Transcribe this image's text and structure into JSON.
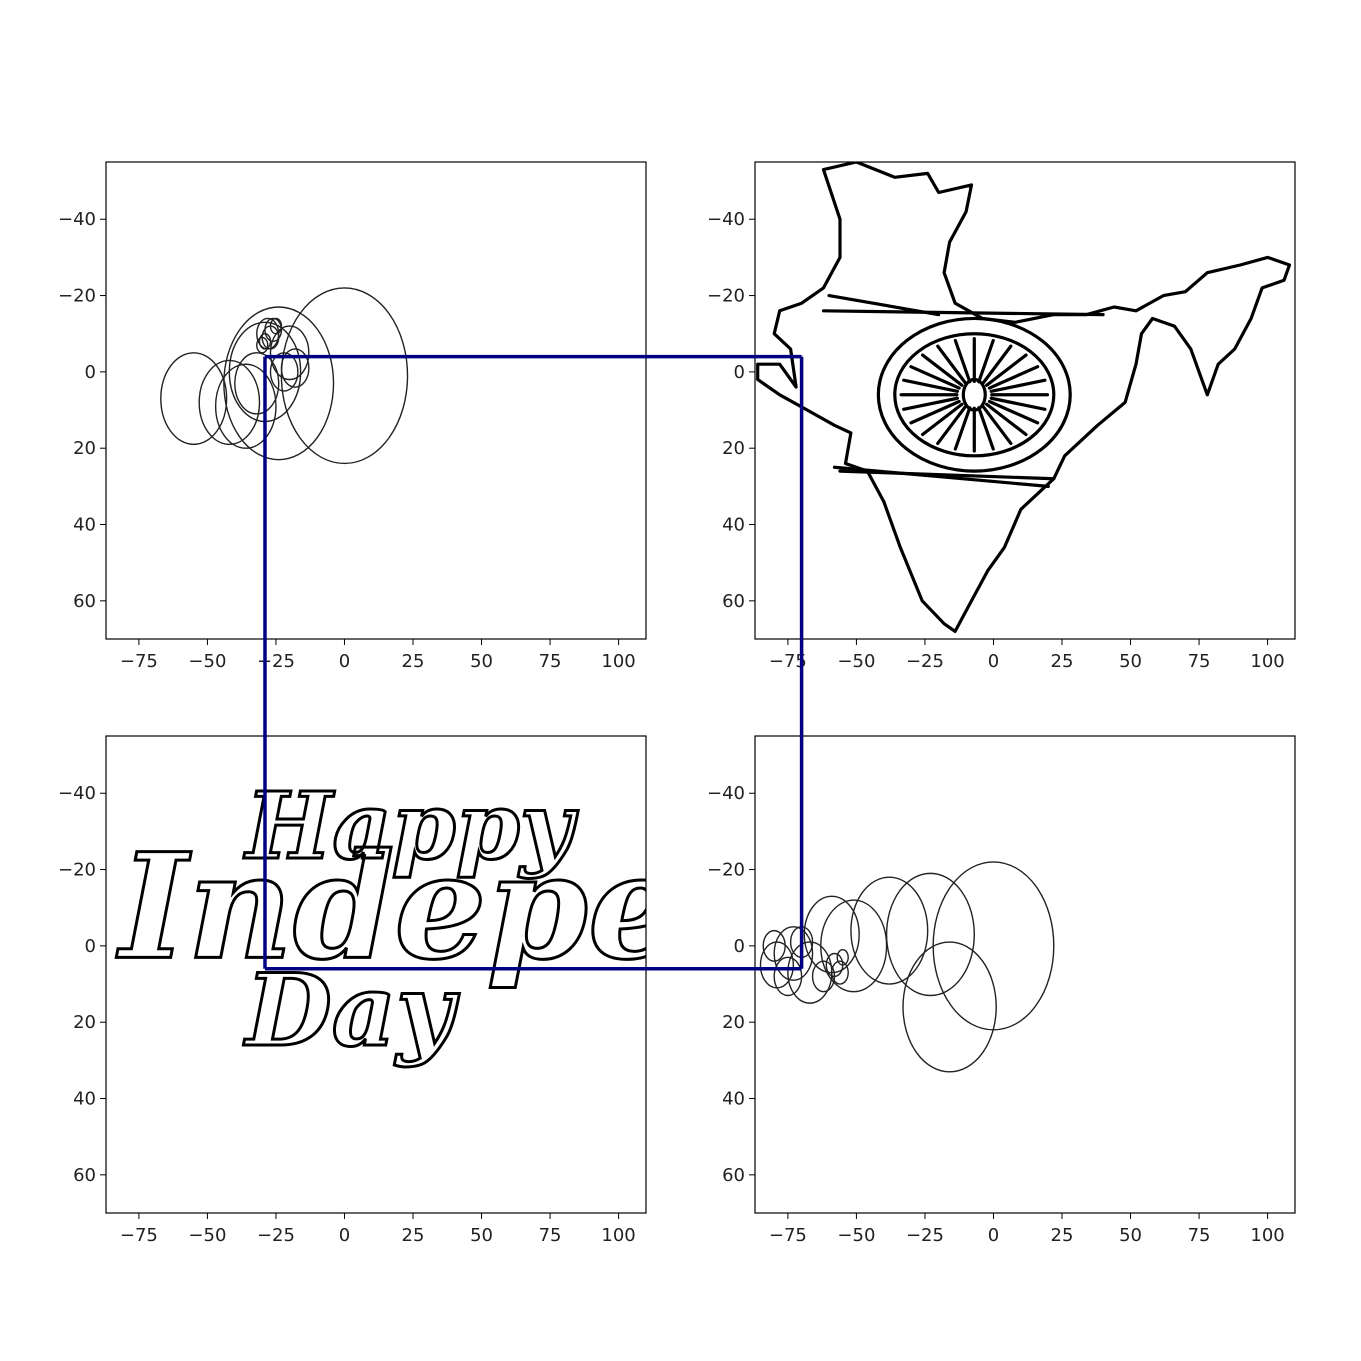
{
  "chart_data": [
    {
      "type": "scatter",
      "panel": "top-left",
      "content": "epicycle-circles",
      "xlim": [
        -87,
        110
      ],
      "ylim": [
        -55,
        70
      ],
      "y_inverted": true,
      "x_ticks": [
        -75,
        -50,
        -25,
        0,
        25,
        50,
        75,
        100
      ],
      "x_tick_labels": [
        "−75",
        "−50",
        "−25",
        "0",
        "25",
        "50",
        "75",
        "100"
      ],
      "y_ticks": [
        -40,
        -20,
        0,
        20,
        40,
        60
      ],
      "y_tick_labels": [
        "−40",
        "−20",
        "0",
        "20",
        "40",
        "60"
      ],
      "circles": [
        {
          "x": 0,
          "y": 1,
          "r": 23
        },
        {
          "x": -24,
          "y": 3,
          "r": 20
        },
        {
          "x": -29,
          "y": 0,
          "r": 13
        },
        {
          "x": -55,
          "y": 7,
          "r": 12
        },
        {
          "x": -42,
          "y": 8,
          "r": 11
        },
        {
          "x": -36,
          "y": 9,
          "r": 11
        },
        {
          "x": -32,
          "y": 3,
          "r": 8
        },
        {
          "x": -20,
          "y": -5,
          "r": 7
        },
        {
          "x": -22,
          "y": 0,
          "r": 5
        },
        {
          "x": -18,
          "y": -1,
          "r": 5
        },
        {
          "x": -28,
          "y": -10,
          "r": 4
        },
        {
          "x": -26,
          "y": -11,
          "r": 3
        },
        {
          "x": -27,
          "y": -9,
          "r": 3
        },
        {
          "x": -29,
          "y": -8,
          "r": 2
        },
        {
          "x": -25,
          "y": -12,
          "r": 2
        },
        {
          "x": -30,
          "y": -7,
          "r": 2
        }
      ],
      "pointer": {
        "x": -29,
        "y": -4
      }
    },
    {
      "type": "line",
      "panel": "top-right",
      "content": "india-map-with-ashoka-chakra",
      "xlim": [
        -87,
        110
      ],
      "ylim": [
        -55,
        70
      ],
      "y_inverted": true,
      "x_ticks": [
        -75,
        -50,
        -25,
        0,
        25,
        50,
        75,
        100
      ],
      "x_tick_labels": [
        "−75",
        "−50",
        "−25",
        "0",
        "25",
        "50",
        "75",
        "100"
      ],
      "y_ticks": [
        -40,
        -20,
        0,
        20,
        40,
        60
      ],
      "y_tick_labels": [
        "−40",
        "−20",
        "0",
        "20",
        "40",
        "60"
      ],
      "map_outline": [
        [
          -62,
          -53
        ],
        [
          -50,
          -55
        ],
        [
          -36,
          -51
        ],
        [
          -24,
          -52
        ],
        [
          -20,
          -47
        ],
        [
          -8,
          -49
        ],
        [
          -10,
          -42
        ],
        [
          -16,
          -34
        ],
        [
          -18,
          -26
        ],
        [
          -14,
          -18
        ],
        [
          -4,
          -14
        ],
        [
          8,
          -13
        ],
        [
          22,
          -15
        ],
        [
          34,
          -15
        ],
        [
          44,
          -17
        ],
        [
          52,
          -16
        ],
        [
          62,
          -20
        ],
        [
          70,
          -21
        ],
        [
          78,
          -26
        ],
        [
          90,
          -28
        ],
        [
          100,
          -30
        ],
        [
          108,
          -28
        ],
        [
          106,
          -24
        ],
        [
          98,
          -22
        ],
        [
          94,
          -14
        ],
        [
          88,
          -6
        ],
        [
          82,
          -2
        ],
        [
          78,
          6
        ],
        [
          72,
          -6
        ],
        [
          66,
          -12
        ],
        [
          58,
          -14
        ],
        [
          54,
          -10
        ],
        [
          52,
          -2
        ],
        [
          48,
          8
        ],
        [
          38,
          14
        ],
        [
          26,
          22
        ],
        [
          22,
          28
        ],
        [
          10,
          36
        ],
        [
          4,
          46
        ],
        [
          -2,
          52
        ],
        [
          -8,
          60
        ],
        [
          -14,
          68
        ],
        [
          -18,
          66
        ],
        [
          -26,
          60
        ],
        [
          -34,
          46
        ],
        [
          -40,
          34
        ],
        [
          -46,
          26
        ],
        [
          -54,
          24
        ],
        [
          -52,
          16
        ],
        [
          -58,
          14
        ],
        [
          -68,
          10
        ],
        [
          -78,
          6
        ],
        [
          -86,
          2
        ],
        [
          -86,
          -2
        ],
        [
          -78,
          -2
        ],
        [
          -72,
          4
        ],
        [
          -74,
          -6
        ],
        [
          -80,
          -10
        ],
        [
          -78,
          -16
        ],
        [
          -70,
          -18
        ],
        [
          -62,
          -22
        ],
        [
          -56,
          -30
        ],
        [
          -56,
          -40
        ],
        [
          -62,
          -53
        ]
      ],
      "inner_lines": [
        [
          [
            -60,
            -20
          ],
          [
            -20,
            -15
          ]
        ],
        [
          [
            -62,
            -16
          ],
          [
            40,
            -15
          ]
        ],
        [
          [
            -56,
            26
          ],
          [
            22,
            28
          ]
        ],
        [
          [
            -58,
            25
          ],
          [
            20,
            30
          ]
        ]
      ],
      "chakra": {
        "x": -7,
        "y": 6,
        "rx": 35,
        "ry": 20,
        "inner_rx": 29,
        "inner_ry": 16,
        "hub_r": 4,
        "spokes": 24
      },
      "pointer": {
        "x": -70,
        "y": -4
      }
    },
    {
      "type": "line",
      "panel": "bottom-left",
      "content": "happy-independence-day-lettering",
      "xlim": [
        -87,
        110
      ],
      "ylim": [
        -55,
        70
      ],
      "y_inverted": true,
      "x_ticks": [
        -75,
        -50,
        -25,
        0,
        25,
        50,
        75,
        100
      ],
      "x_tick_labels": [
        "−75",
        "−50",
        "−25",
        "0",
        "25",
        "50",
        "75",
        "100"
      ],
      "y_ticks": [
        -40,
        -20,
        0,
        20,
        40,
        60
      ],
      "y_tick_labels": [
        "−40",
        "−20",
        "0",
        "20",
        "40",
        "60"
      ],
      "lettering_lines": [
        {
          "text": "Happy",
          "x": -36,
          "y": -23,
          "size": 24
        },
        {
          "text": "Independence",
          "x": -82,
          "y": 3,
          "size": 38
        },
        {
          "text": "Day",
          "x": -36,
          "y": 26,
          "size": 26
        }
      ],
      "pointer": {
        "x": -29,
        "y": 6
      }
    },
    {
      "type": "scatter",
      "panel": "bottom-right",
      "content": "epicycle-circles",
      "xlim": [
        -87,
        110
      ],
      "ylim": [
        -55,
        70
      ],
      "y_inverted": true,
      "x_ticks": [
        -75,
        -50,
        -25,
        0,
        25,
        50,
        75,
        100
      ],
      "x_tick_labels": [
        "−75",
        "−50",
        "−25",
        "0",
        "25",
        "50",
        "75",
        "100"
      ],
      "y_ticks": [
        -40,
        -20,
        0,
        20,
        40,
        60
      ],
      "y_tick_labels": [
        "−40",
        "−20",
        "0",
        "20",
        "40",
        "60"
      ],
      "circles": [
        {
          "x": 0,
          "y": 0,
          "r": 22
        },
        {
          "x": -16,
          "y": 16,
          "r": 17
        },
        {
          "x": -23,
          "y": -3,
          "r": 16
        },
        {
          "x": -38,
          "y": -4,
          "r": 14
        },
        {
          "x": -51,
          "y": 0,
          "r": 12
        },
        {
          "x": -59,
          "y": -3,
          "r": 10
        },
        {
          "x": -67,
          "y": 7,
          "r": 8
        },
        {
          "x": -73,
          "y": 2,
          "r": 7
        },
        {
          "x": -79,
          "y": 5,
          "r": 6
        },
        {
          "x": -75,
          "y": 8,
          "r": 5
        },
        {
          "x": -70,
          "y": -1,
          "r": 4
        },
        {
          "x": -80,
          "y": 0,
          "r": 4
        },
        {
          "x": -62,
          "y": 8,
          "r": 4
        },
        {
          "x": -58,
          "y": 5,
          "r": 3
        },
        {
          "x": -56,
          "y": 7,
          "r": 3
        },
        {
          "x": -55,
          "y": 3,
          "r": 2
        }
      ],
      "pointer": {
        "x": -70,
        "y": 6
      }
    }
  ],
  "connectors": [
    {
      "name": "connector-top",
      "from": [
        0,
        -29,
        -4
      ],
      "to": [
        1,
        -70,
        -4
      ]
    },
    {
      "name": "connector-right-vertical",
      "from": [
        1,
        -70,
        -4
      ],
      "to": [
        3,
        -70,
        6
      ]
    },
    {
      "name": "connector-bottom",
      "from": [
        2,
        -29,
        6
      ],
      "to": [
        3,
        -70,
        6
      ]
    },
    {
      "name": "connector-left-vertical",
      "from": [
        0,
        -29,
        -4
      ],
      "to": [
        2,
        -29,
        6
      ]
    }
  ],
  "colors": {
    "connector": "#000080",
    "ink": "#000000",
    "circle": "#222222",
    "background": "#ffffff"
  }
}
